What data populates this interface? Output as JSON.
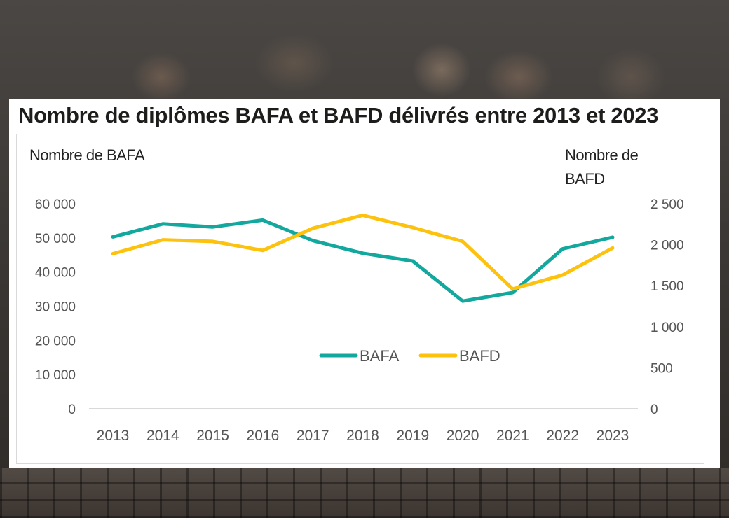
{
  "chart_data": {
    "type": "line",
    "title": "Nombre de diplômes BAFA et BAFD délivrés entre 2013 et 2023",
    "y_left_label": "Nombre de BAFA",
    "y_right_label_line1": "Nombre de",
    "y_right_label_line2": "BAFD",
    "categories": [
      "2013",
      "2014",
      "2015",
      "2016",
      "2017",
      "2018",
      "2019",
      "2020",
      "2021",
      "2022",
      "2023"
    ],
    "y_left_ticks": [
      0,
      10000,
      20000,
      30000,
      40000,
      50000,
      60000
    ],
    "y_left_tick_labels": [
      "0",
      "10 000",
      "20 000",
      "30 000",
      "40 000",
      "50 000",
      "60 000"
    ],
    "y_left_range": [
      0,
      60000
    ],
    "y_right_ticks": [
      0,
      500,
      1000,
      1500,
      2000,
      2500
    ],
    "y_right_tick_labels": [
      "0",
      "500",
      "1 000",
      "1 500",
      "2 000",
      "2 500"
    ],
    "y_right_range": [
      0,
      2500
    ],
    "grid": false,
    "legend_position": "center",
    "series": [
      {
        "name": "BAFA",
        "axis": "left",
        "color": "#13a89e",
        "values": [
          50300,
          54100,
          53200,
          55200,
          49200,
          45500,
          43200,
          31500,
          34000,
          46800,
          50200
        ]
      },
      {
        "name": "BAFD",
        "axis": "right",
        "color": "#fcc20d",
        "values": [
          1890,
          2060,
          2040,
          1930,
          2200,
          2360,
          2210,
          2040,
          1460,
          1630,
          1960
        ]
      }
    ]
  }
}
